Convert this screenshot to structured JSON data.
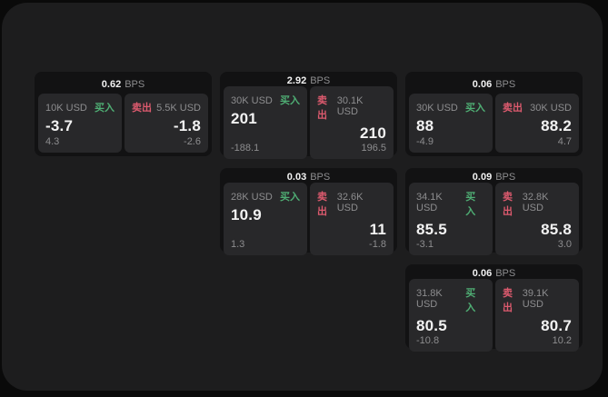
{
  "app": {
    "colors": {
      "bg-outer": "#0a0a0a",
      "bg-window": "#1d1d1e",
      "bg-card": "#121213",
      "bg-panel": "#28282a",
      "c-buy": "#4fae74",
      "c-sell": "#dd5a6e",
      "c-text": "#f2f2f2",
      "c-muted": "#8d8d8f"
    },
    "labels": {
      "bps_suffix": "BPS",
      "buy": "买入",
      "sell": "卖出"
    }
  },
  "cards": [
    {
      "bps": "0.62",
      "grid": {
        "col": 1,
        "row": 1
      },
      "buy": {
        "size": "10K USD",
        "price": "-3.7",
        "delta": "4.3"
      },
      "sell": {
        "size": "5.5K USD",
        "price": "-1.8",
        "delta": "-2.6"
      }
    },
    {
      "bps": "2.92",
      "grid": {
        "col": 2,
        "row": 1
      },
      "buy": {
        "size": "30K USD",
        "price": "201",
        "delta": "-188.1"
      },
      "sell": {
        "size": "30.1K USD",
        "price": "210",
        "delta": "196.5"
      }
    },
    {
      "bps": "0.06",
      "grid": {
        "col": 3,
        "row": 1
      },
      "buy": {
        "size": "30K USD",
        "price": "88",
        "delta": "-4.9"
      },
      "sell": {
        "size": "30K USD",
        "price": "88.2",
        "delta": "4.7"
      }
    },
    {
      "bps": "0.03",
      "grid": {
        "col": 2,
        "row": 2
      },
      "buy": {
        "size": "28K USD",
        "price": "10.9",
        "delta": "1.3"
      },
      "sell": {
        "size": "32.6K USD",
        "price": "11",
        "delta": "-1.8"
      }
    },
    {
      "bps": "0.09",
      "grid": {
        "col": 3,
        "row": 2
      },
      "buy": {
        "size": "34.1K USD",
        "price": "85.5",
        "delta": "-3.1"
      },
      "sell": {
        "size": "32.8K USD",
        "price": "85.8",
        "delta": "3.0"
      }
    },
    {
      "bps": "0.06",
      "grid": {
        "col": 3,
        "row": 3
      },
      "buy": {
        "size": "31.8K USD",
        "price": "80.5",
        "delta": "-10.8"
      },
      "sell": {
        "size": "39.1K USD",
        "price": "80.7",
        "delta": "10.2"
      }
    }
  ]
}
